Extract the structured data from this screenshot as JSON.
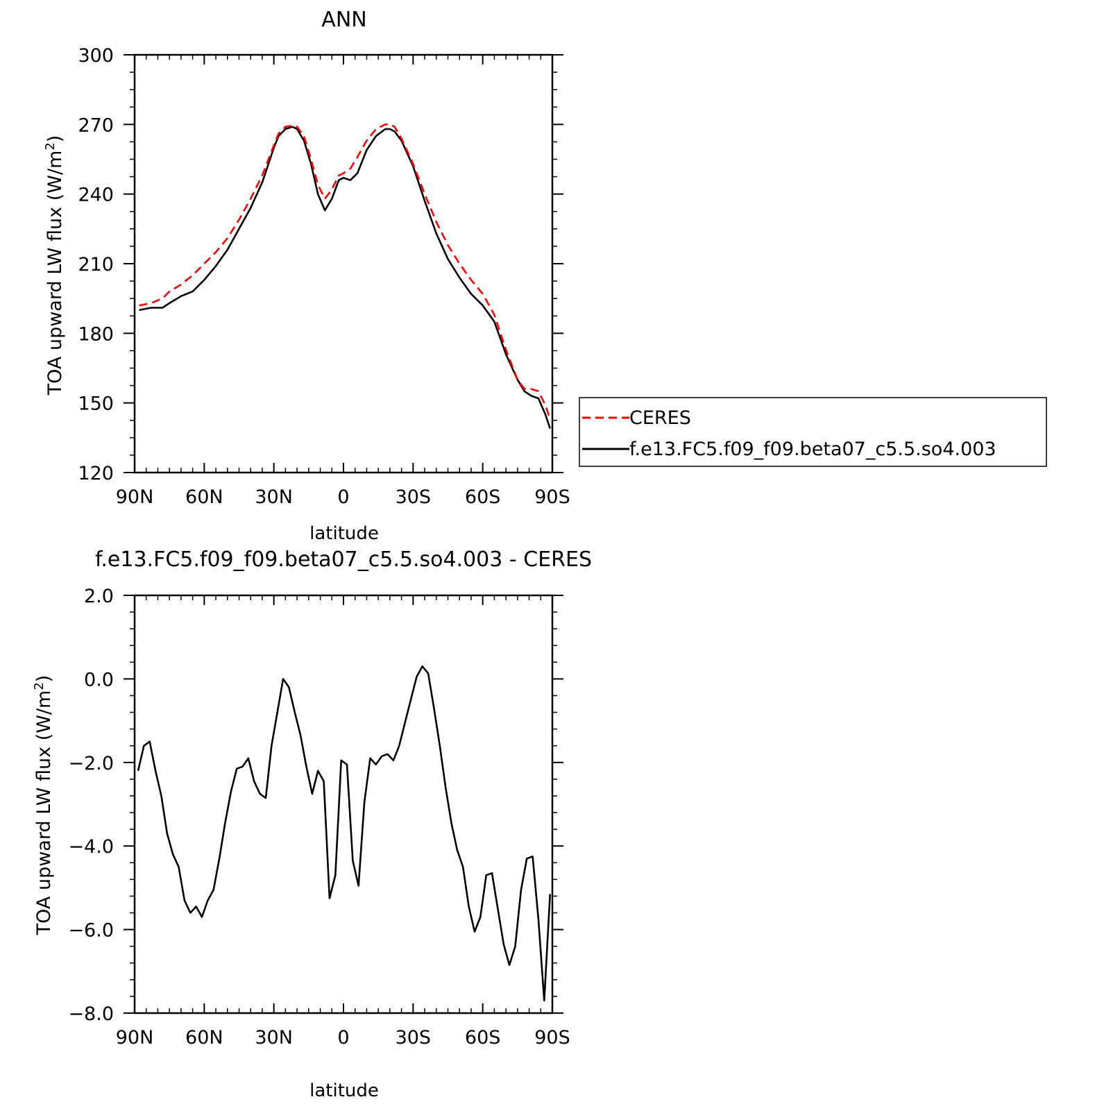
{
  "chart_data": [
    {
      "type": "line",
      "title": "ANN",
      "xlabel": "latitude",
      "ylabel": "TOA upward LW flux (W/m²)",
      "ylabel_main": "TOA upward LW flux (W/m",
      "ylabel_sup": "2",
      "ylabel_close": ")",
      "xlim": [
        90,
        -90
      ],
      "ylim": [
        120,
        300
      ],
      "xtick_values": [
        90,
        60,
        30,
        0,
        -30,
        -60,
        -90
      ],
      "xtick_labels": [
        "90N",
        "60N",
        "30N",
        "0",
        "30S",
        "60S",
        "90S"
      ],
      "ytick_values": [
        120,
        150,
        180,
        210,
        240,
        270,
        300
      ],
      "ytick_labels": [
        "120",
        "150",
        "180",
        "210",
        "240",
        "270",
        "300"
      ],
      "legend": {
        "placement": "right-middle",
        "entries": [
          "CERES",
          "f.e13.FC5.f09_f09.beta07_c5.5.so4.003"
        ]
      },
      "series": [
        {
          "name": "CERES",
          "color": "#ff0000",
          "style": "dashed",
          "x": [
            88,
            83,
            78,
            75,
            70,
            65,
            60,
            55,
            50,
            45,
            40,
            35,
            30,
            28,
            25,
            22,
            20,
            17,
            14,
            11,
            8,
            5,
            2,
            0,
            -3,
            -6,
            -10,
            -14,
            -18,
            -20,
            -22,
            -25,
            -30,
            -35,
            -40,
            -45,
            -50,
            -55,
            -60,
            -65,
            -70,
            -75,
            -78,
            -81,
            -84,
            -87,
            -89
          ],
          "values": [
            192,
            193,
            195,
            198,
            201,
            205,
            210,
            215,
            221,
            229,
            238,
            248,
            261,
            266,
            269,
            269.5,
            269,
            265,
            255,
            244,
            238,
            242,
            248,
            249,
            251,
            256,
            263,
            268,
            270,
            270,
            269,
            264,
            253,
            240,
            228,
            218,
            210,
            203,
            197,
            188,
            173,
            160,
            156,
            156,
            155,
            149,
            143
          ]
        },
        {
          "name": "f.e13.FC5.f09_f09.beta07_c5.5.so4.003",
          "color": "#000000",
          "style": "solid",
          "x": [
            88,
            83,
            78,
            75,
            70,
            65,
            60,
            55,
            50,
            45,
            40,
            35,
            30,
            28,
            25,
            22,
            20,
            17,
            14,
            11,
            8,
            5,
            2,
            0,
            -3,
            -6,
            -10,
            -14,
            -18,
            -20,
            -22,
            -25,
            -30,
            -35,
            -40,
            -45,
            -50,
            -55,
            -60,
            -65,
            -70,
            -75,
            -78,
            -81,
            -84,
            -87,
            -89
          ],
          "values": [
            190,
            191,
            191,
            193,
            196,
            198,
            203,
            209,
            216,
            225,
            234,
            245,
            260,
            265,
            268,
            269,
            268,
            263,
            253,
            240,
            233,
            238,
            246,
            247,
            246,
            249,
            259,
            265,
            268,
            268,
            267,
            263,
            252,
            237,
            223,
            212,
            204,
            197,
            192,
            185,
            171,
            160,
            155,
            153,
            152,
            145,
            139
          ]
        }
      ]
    },
    {
      "type": "line",
      "title": "f.e13.FC5.f09_f09.beta07_c5.5.so4.003 - CERES",
      "xlabel": "latitude",
      "ylabel": "TOA upward LW flux (W/m²)",
      "ylabel_main": "TOA upward LW flux (W/m",
      "ylabel_sup": "2",
      "ylabel_close": ")",
      "xlim": [
        90,
        -90
      ],
      "ylim": [
        -8.0,
        2.0
      ],
      "xtick_values": [
        90,
        60,
        30,
        0,
        -30,
        -60,
        -90
      ],
      "xtick_labels": [
        "90N",
        "60N",
        "30N",
        "0",
        "30S",
        "60S",
        "90S"
      ],
      "ytick_values": [
        -8.0,
        -6.0,
        -4.0,
        -2.0,
        0.0,
        2.0
      ],
      "ytick_labels": [
        "−8.0",
        "−6.0",
        "−4.0",
        "−2.0",
        "0.0",
        "2.0"
      ],
      "series": [
        {
          "color": "#000000",
          "style": "solid",
          "x": [
            88.5,
            86,
            83.5,
            81,
            78.5,
            76,
            73.5,
            71,
            68.5,
            66,
            63.5,
            61,
            58.5,
            56,
            53.5,
            51,
            48.5,
            46,
            43.5,
            41,
            38.5,
            36,
            33.5,
            31,
            28.5,
            26,
            23.5,
            21,
            18.5,
            16,
            13.5,
            11,
            8.5,
            6,
            3.5,
            1,
            -1.5,
            -4,
            -6.5,
            -9,
            -11.5,
            -14,
            -16.5,
            -19,
            -21.5,
            -24,
            -26.5,
            -29,
            -31.5,
            -34,
            -36.5,
            -39,
            -41.5,
            -44,
            -46.5,
            -49,
            -51.5,
            -54,
            -56.5,
            -59,
            -61.5,
            -64,
            -66.5,
            -69,
            -71.5,
            -74,
            -76.5,
            -79,
            -81.5,
            -84,
            -86.5,
            -89
          ],
          "values": [
            -2.2,
            -1.6,
            -1.5,
            -2.2,
            -2.8,
            -3.7,
            -4.2,
            -4.5,
            -5.3,
            -5.6,
            -5.45,
            -5.7,
            -5.3,
            -5.05,
            -4.3,
            -3.45,
            -2.7,
            -2.15,
            -2.1,
            -1.9,
            -2.45,
            -2.75,
            -2.85,
            -1.6,
            -0.8,
            0.0,
            -0.2,
            -0.8,
            -1.35,
            -2.1,
            -2.75,
            -2.2,
            -2.45,
            -5.25,
            -4.7,
            -1.95,
            -2.05,
            -4.35,
            -4.95,
            -2.95,
            -1.9,
            -2.05,
            -1.85,
            -1.8,
            -1.95,
            -1.6,
            -1.05,
            -0.5,
            0.05,
            0.3,
            0.13,
            -0.7,
            -1.6,
            -2.6,
            -3.45,
            -4.1,
            -4.5,
            -5.45,
            -6.05,
            -5.7,
            -4.7,
            -4.65,
            -5.5,
            -6.35,
            -6.85,
            -6.4,
            -5.05,
            -4.3,
            -4.25,
            -5.75,
            -7.7,
            -5.15
          ]
        }
      ]
    }
  ]
}
